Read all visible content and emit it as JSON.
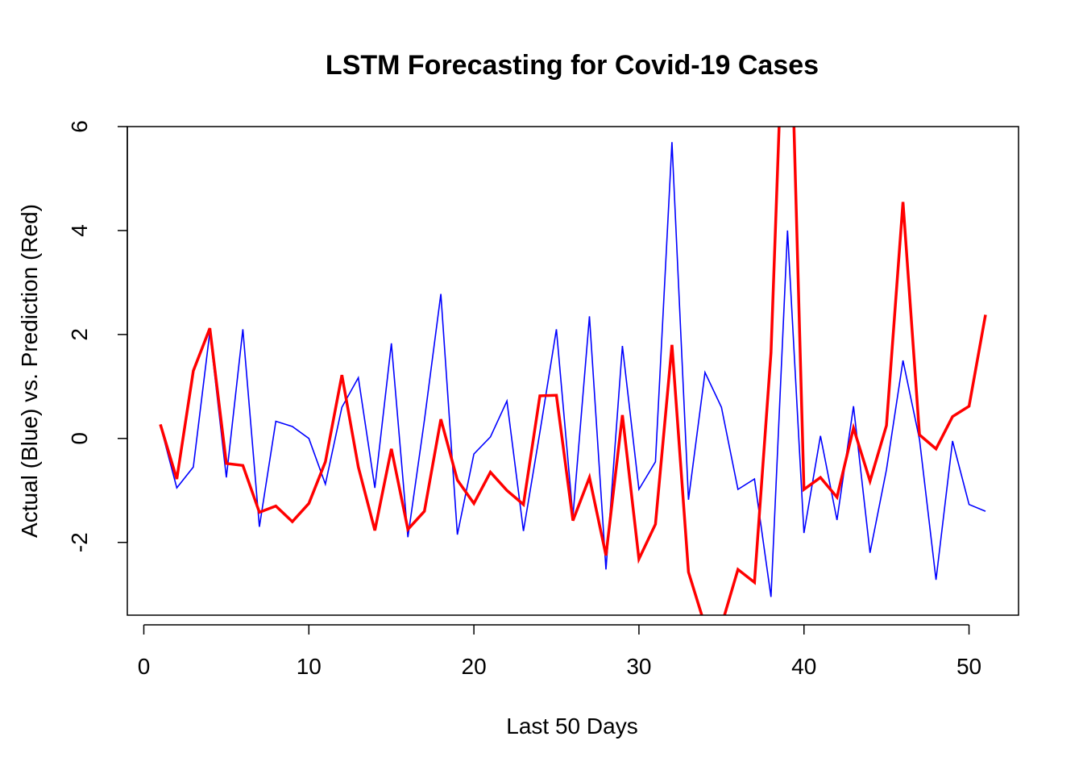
{
  "chart_data": {
    "type": "line",
    "title": "LSTM Forecasting for Covid-19 Cases",
    "xlabel": "Last 50 Days",
    "ylabel": "Actual (Blue) vs. Prediction (Red)",
    "xlim": [
      -1,
      53
    ],
    "ylim": [
      -3.4,
      6.0
    ],
    "x_ticks": [
      0,
      10,
      20,
      30,
      40,
      50
    ],
    "y_ticks": [
      -2,
      0,
      2,
      4,
      6
    ],
    "grid": false,
    "legend": "none",
    "x": [
      1,
      2,
      3,
      4,
      5,
      6,
      7,
      8,
      9,
      10,
      11,
      12,
      13,
      14,
      15,
      16,
      17,
      18,
      19,
      20,
      21,
      22,
      23,
      24,
      25,
      26,
      27,
      28,
      29,
      30,
      31,
      32,
      33,
      34,
      35,
      36,
      37,
      38,
      39,
      40,
      41,
      42,
      43,
      44,
      45,
      46,
      47,
      48,
      49,
      50,
      51
    ],
    "series": [
      {
        "color": "#0000ff",
        "line_width": "thin",
        "values": [
          0.25,
          -0.95,
          -0.55,
          2.05,
          -0.75,
          2.1,
          -1.7,
          0.33,
          0.23,
          0.0,
          -0.88,
          0.6,
          1.17,
          -0.95,
          1.83,
          -1.9,
          0.35,
          2.78,
          -1.85,
          -0.3,
          0.03,
          0.72,
          -1.78,
          0.12,
          2.1,
          -1.5,
          2.35,
          -2.52,
          1.78,
          -0.98,
          -0.45,
          5.7,
          -1.18,
          1.27,
          0.6,
          -0.98,
          -0.78,
          -3.05,
          4.0,
          -1.82,
          0.05,
          -1.57,
          0.62,
          -2.2,
          -0.6,
          1.5,
          -0.02,
          -2.72,
          -0.05,
          -1.27,
          -1.4
        ]
      },
      {
        "color": "#ff0000",
        "line_width": "thick",
        "values": [
          0.27,
          -0.78,
          1.3,
          2.12,
          -0.48,
          -0.52,
          -1.42,
          -1.3,
          -1.6,
          -1.25,
          -0.45,
          1.22,
          -0.55,
          -1.77,
          -0.2,
          -1.75,
          -1.4,
          0.37,
          -0.8,
          -1.25,
          -0.65,
          -1.0,
          -1.27,
          0.82,
          0.83,
          -1.58,
          -0.75,
          -2.25,
          0.45,
          -2.32,
          -1.65,
          1.8,
          -2.57,
          -3.6,
          -3.6,
          -2.52,
          -2.77,
          1.65,
          10.5,
          -0.98,
          -0.75,
          -1.13,
          0.2,
          -0.82,
          0.25,
          4.55,
          0.07,
          -0.2,
          0.42,
          0.62,
          2.38
        ]
      }
    ]
  }
}
